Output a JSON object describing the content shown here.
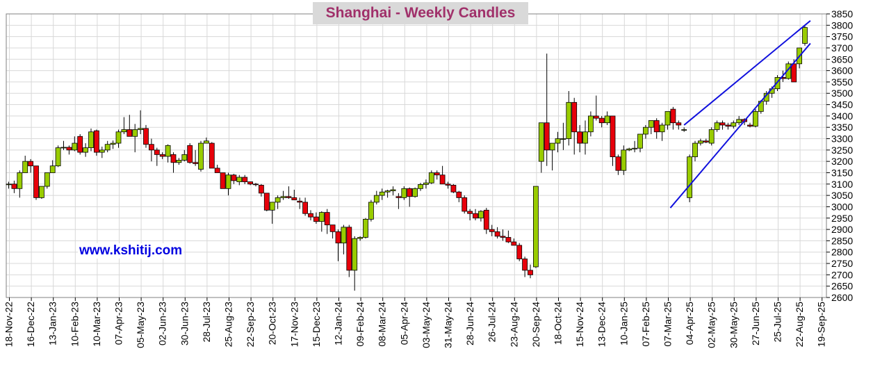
{
  "title": "Shanghai - Weekly Candles",
  "watermark": "www.kshitij.com",
  "colors": {
    "up": "#99cc00",
    "down": "#e8000b",
    "trend": "#1010dd",
    "grid": "#d8d8d8",
    "title": "#a0306a",
    "watermark": "#0000e0"
  },
  "chart_data": {
    "type": "candlestick",
    "title": "Shanghai - Weekly Candles",
    "ylim": [
      2600,
      3850
    ],
    "yticks": [
      2600,
      2650,
      2700,
      2750,
      2800,
      2850,
      2900,
      2950,
      3000,
      3050,
      3100,
      3150,
      3200,
      3250,
      3300,
      3350,
      3400,
      3450,
      3500,
      3550,
      3600,
      3650,
      3700,
      3750,
      3800,
      3850
    ],
    "y_axis_side": "right",
    "grid": true,
    "xtick_labels": [
      "18-Nov-22",
      "16-Dec-22",
      "13-Jan-23",
      "10-Feb-23",
      "10-Mar-23",
      "07-Apr-23",
      "05-May-23",
      "02-Jun-23",
      "30-Jun-23",
      "28-Jul-23",
      "25-Aug-23",
      "22-Sep-23",
      "20-Oct-23",
      "17-Nov-23",
      "15-Dec-23",
      "12-Jan-24",
      "09-Feb-24",
      "08-Mar-24",
      "05-Apr-24",
      "03-May-24",
      "31-May-24",
      "28-Jun-24",
      "26-Jul-24",
      "23-Aug-24",
      "20-Sep-24",
      "18-Oct-24",
      "15-Nov-24",
      "13-Dec-24",
      "10-Jan-25",
      "07-Feb-25",
      "07-Mar-25",
      "04-Apr-25",
      "02-May-25",
      "30-May-25",
      "27-Jun-25",
      "25-Jul-25",
      "22-Aug-25",
      "19-Sep-25"
    ],
    "candles": [
      [
        3097,
        3110,
        3080,
        3100
      ],
      [
        3100,
        3115,
        3060,
        3080
      ],
      [
        3080,
        3160,
        3040,
        3150
      ],
      [
        3150,
        3225,
        3150,
        3200
      ],
      [
        3200,
        3210,
        3150,
        3180
      ],
      [
        3180,
        3180,
        3030,
        3040
      ],
      [
        3040,
        3090,
        3035,
        3090
      ],
      [
        3090,
        3150,
        3080,
        3150
      ],
      [
        3150,
        3205,
        3150,
        3180
      ],
      [
        3180,
        3270,
        3175,
        3260
      ],
      [
        3260,
        3290,
        3250,
        3262
      ],
      [
        3262,
        3270,
        3230,
        3250
      ],
      [
        3250,
        3310,
        3245,
        3280
      ],
      [
        3310,
        3320,
        3230,
        3240
      ],
      [
        3240,
        3280,
        3220,
        3260
      ],
      [
        3260,
        3345,
        3245,
        3330
      ],
      [
        3335,
        3340,
        3225,
        3240
      ],
      [
        3240,
        3265,
        3215,
        3250
      ],
      [
        3250,
        3290,
        3240,
        3275
      ],
      [
        3275,
        3292,
        3255,
        3280
      ],
      [
        3280,
        3340,
        3260,
        3330
      ],
      [
        3330,
        3395,
        3320,
        3340
      ],
      [
        3340,
        3405,
        3310,
        3310
      ],
      [
        3310,
        3365,
        3240,
        3340
      ],
      [
        3340,
        3425,
        3320,
        3345
      ],
      [
        3345,
        3360,
        3260,
        3275
      ],
      [
        3275,
        3300,
        3200,
        3250
      ],
      [
        3250,
        3260,
        3180,
        3230
      ],
      [
        3230,
        3240,
        3210,
        3222
      ],
      [
        3222,
        3275,
        3195,
        3270
      ],
      [
        3230,
        3240,
        3150,
        3195
      ],
      [
        3195,
        3215,
        3185,
        3205
      ],
      [
        3205,
        3250,
        3200,
        3230
      ],
      [
        3270,
        3280,
        3190,
        3195
      ],
      [
        3195,
        3250,
        3180,
        3190
      ],
      [
        3165,
        3290,
        3155,
        3280
      ],
      [
        3280,
        3305,
        3280,
        3290
      ],
      [
        3280,
        3285,
        3180,
        3170
      ],
      [
        3170,
        3185,
        3150,
        3150
      ],
      [
        3150,
        3150,
        3080,
        3080
      ],
      [
        3080,
        3150,
        3050,
        3140
      ],
      [
        3140,
        3145,
        3100,
        3115
      ],
      [
        3110,
        3140,
        3095,
        3130
      ],
      [
        3130,
        3140,
        3100,
        3110
      ],
      [
        3110,
        3110,
        3095,
        3100
      ],
      [
        3100,
        3105,
        3090,
        3098
      ],
      [
        3095,
        3100,
        3045,
        3060
      ],
      [
        3060,
        3060,
        2980,
        2985
      ],
      [
        2985,
        3015,
        2925,
        3020
      ],
      [
        3020,
        3050,
        2990,
        3040
      ],
      [
        3040,
        3070,
        3030,
        3045
      ],
      [
        3045,
        3090,
        3035,
        3040
      ],
      [
        3040,
        3075,
        3030,
        3030
      ],
      [
        3025,
        3040,
        2990,
        3020
      ],
      [
        3020,
        3040,
        2960,
        2970
      ],
      [
        2970,
        2985,
        2940,
        2955
      ],
      [
        2955,
        2975,
        2925,
        2935
      ],
      [
        2935,
        2980,
        2890,
        2975
      ],
      [
        2975,
        2990,
        2880,
        2920
      ],
      [
        2920,
        2920,
        2860,
        2890
      ],
      [
        2890,
        2900,
        2760,
        2840
      ],
      [
        2840,
        2920,
        2790,
        2910
      ],
      [
        2910,
        2920,
        2690,
        2720
      ],
      [
        2720,
        2870,
        2630,
        2860
      ],
      [
        2860,
        2870,
        2850,
        2865
      ],
      [
        2865,
        2950,
        2860,
        2945
      ],
      [
        2945,
        3030,
        2935,
        3020
      ],
      [
        3020,
        3070,
        3010,
        3050
      ],
      [
        3050,
        3080,
        3030,
        3065
      ],
      [
        3065,
        3075,
        3040,
        3070
      ],
      [
        3070,
        3090,
        3050,
        3075
      ],
      [
        3045,
        3060,
        2990,
        3040
      ],
      [
        3040,
        3090,
        3030,
        3080
      ],
      [
        3080,
        3085,
        3000,
        3045
      ],
      [
        3045,
        3085,
        3040,
        3080
      ],
      [
        3080,
        3105,
        3070,
        3098
      ],
      [
        3098,
        3120,
        3080,
        3105
      ],
      [
        3105,
        3160,
        3100,
        3150
      ],
      [
        3150,
        3160,
        3120,
        3140
      ],
      [
        3140,
        3180,
        3100,
        3100
      ],
      [
        3100,
        3110,
        3080,
        3095
      ],
      [
        3095,
        3100,
        3060,
        3065
      ],
      [
        3065,
        3070,
        3020,
        3040
      ],
      [
        3040,
        3050,
        2970,
        2980
      ],
      [
        2980,
        2990,
        2940,
        2970
      ],
      [
        2970,
        2990,
        2940,
        2950
      ],
      [
        2950,
        2985,
        2935,
        2980
      ],
      [
        2985,
        2995,
        2880,
        2900
      ],
      [
        2900,
        2920,
        2870,
        2890
      ],
      [
        2890,
        2910,
        2860,
        2870
      ],
      [
        2870,
        2900,
        2850,
        2865
      ],
      [
        2865,
        2895,
        2840,
        2845
      ],
      [
        2845,
        2860,
        2835,
        2830
      ],
      [
        2830,
        2840,
        2760,
        2770
      ],
      [
        2770,
        2780,
        2690,
        2720
      ],
      [
        2720,
        2745,
        2685,
        2700
      ],
      [
        2735,
        3090,
        2730,
        3090
      ],
      [
        3200,
        3370,
        3150,
        3370
      ],
      [
        3370,
        3675,
        3180,
        3250
      ],
      [
        3250,
        3270,
        3160,
        3280
      ],
      [
        3280,
        3330,
        3240,
        3300
      ],
      [
        3300,
        3370,
        3250,
        3300
      ],
      [
        3300,
        3510,
        3270,
        3460
      ],
      [
        3460,
        3480,
        3230,
        3330
      ],
      [
        3330,
        3360,
        3240,
        3280
      ],
      [
        3280,
        3380,
        3230,
        3330
      ],
      [
        3330,
        3420,
        3310,
        3400
      ],
      [
        3400,
        3490,
        3380,
        3390
      ],
      [
        3390,
        3400,
        3350,
        3370
      ],
      [
        3370,
        3420,
        3360,
        3400
      ],
      [
        3400,
        3400,
        3180,
        3220
      ],
      [
        3220,
        3230,
        3140,
        3160
      ],
      [
        3160,
        3270,
        3140,
        3250
      ],
      [
        3250,
        3260,
        3245,
        3255
      ],
      [
        3255,
        3290,
        3240,
        3258
      ],
      [
        3258,
        3320,
        3240,
        3320
      ],
      [
        3320,
        3360,
        3300,
        3350
      ],
      [
        3350,
        3380,
        3320,
        3380
      ],
      [
        3380,
        3390,
        3300,
        3330
      ],
      [
        3330,
        3370,
        3290,
        3360
      ],
      [
        3360,
        3420,
        3340,
        3420
      ],
      [
        3430,
        3440,
        3340,
        3370
      ],
      [
        3370,
        3380,
        3340,
        3360
      ],
      [
        3340,
        3350,
        3330,
        3340
      ],
      [
        3040,
        3230,
        3020,
        3220
      ],
      [
        3220,
        3290,
        3200,
        3280
      ],
      [
        3280,
        3300,
        3270,
        3290
      ],
      [
        3290,
        3300,
        3280,
        3285
      ],
      [
        3280,
        3350,
        3270,
        3340
      ],
      [
        3340,
        3380,
        3330,
        3370
      ],
      [
        3370,
        3380,
        3340,
        3360
      ],
      [
        3360,
        3370,
        3340,
        3355
      ],
      [
        3355,
        3380,
        3345,
        3370
      ],
      [
        3370,
        3400,
        3360,
        3385
      ],
      [
        3385,
        3390,
        3360,
        3375
      ],
      [
        3360,
        3370,
        3350,
        3355
      ],
      [
        3355,
        3430,
        3350,
        3420
      ],
      [
        3420,
        3470,
        3410,
        3465
      ],
      [
        3465,
        3510,
        3450,
        3500
      ],
      [
        3500,
        3530,
        3480,
        3520
      ],
      [
        3520,
        3580,
        3510,
        3570
      ],
      [
        3570,
        3600,
        3550,
        3565
      ],
      [
        3565,
        3640,
        3560,
        3630
      ],
      [
        3630,
        3650,
        3550,
        3550
      ],
      [
        3630,
        3700,
        3610,
        3700
      ],
      [
        3720,
        3800,
        3710,
        3790
      ]
    ],
    "trendlines": [
      {
        "x1": 123,
        "y1": 3360,
        "x2": 146,
        "y2": 3820
      },
      {
        "x1": 120.5,
        "y1": 2995,
        "x2": 146,
        "y2": 3720
      }
    ]
  }
}
